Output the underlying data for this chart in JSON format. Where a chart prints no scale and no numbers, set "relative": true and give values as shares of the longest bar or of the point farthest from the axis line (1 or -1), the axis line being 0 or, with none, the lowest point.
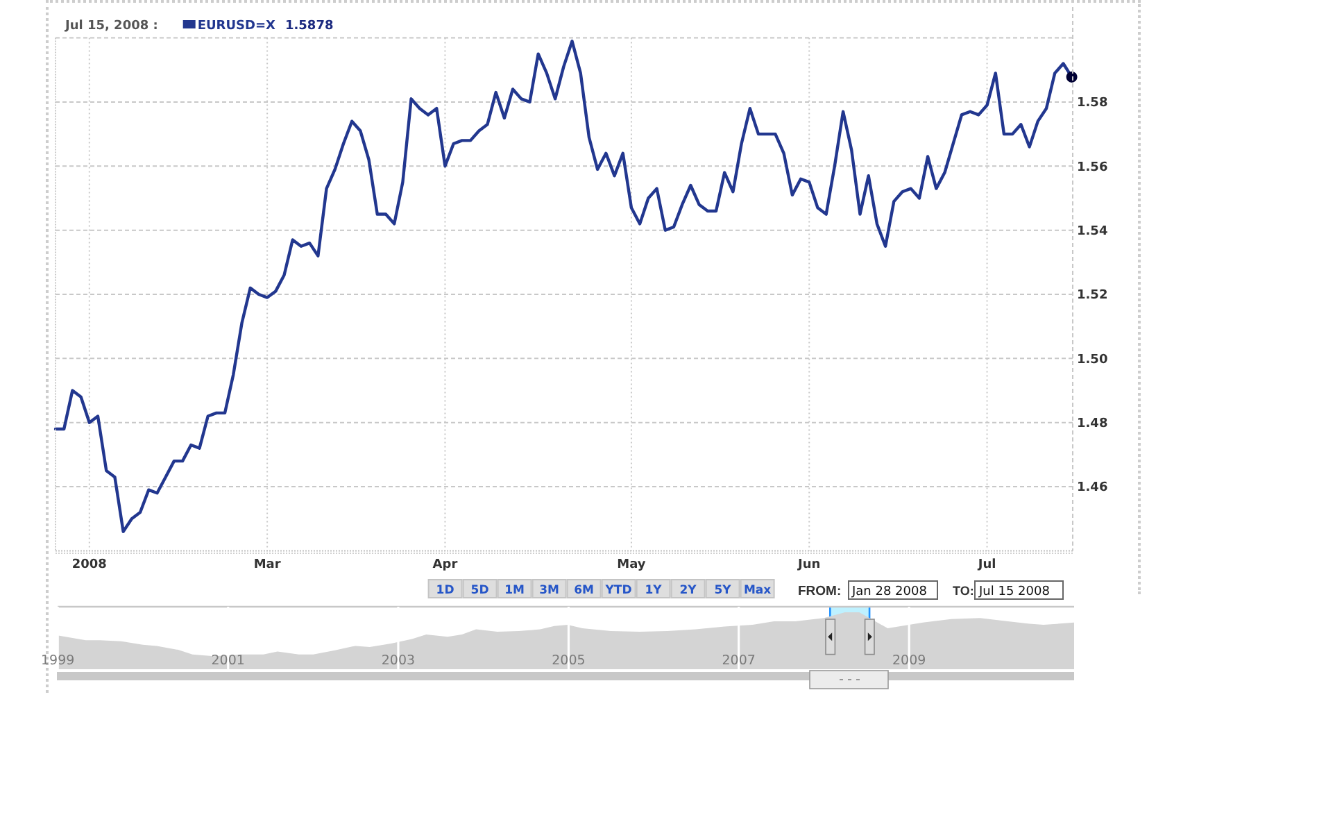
{
  "chart_data": [
    {
      "type": "line",
      "categories": [
        null,
        null,
        null,
        null,
        "2008",
        null,
        null,
        null,
        null,
        null,
        null,
        null,
        null,
        null,
        null,
        null,
        null,
        null,
        null,
        null,
        null,
        null,
        null,
        null,
        null,
        "Mar",
        null,
        null,
        null,
        null,
        null,
        null,
        null,
        null,
        null,
        null,
        null,
        null,
        null,
        null,
        null,
        null,
        null,
        null,
        null,
        null,
        "Apr",
        null,
        null,
        null,
        null,
        null,
        null,
        null,
        null,
        null,
        null,
        null,
        null,
        null,
        null,
        null,
        null,
        null,
        null,
        null,
        null,
        null,
        "May",
        null,
        null,
        null,
        null,
        null,
        null,
        null,
        null,
        null,
        null,
        null,
        null,
        null,
        null,
        null,
        null,
        null,
        null,
        null,
        null,
        "Jun",
        null,
        null,
        null,
        null,
        null,
        null,
        null,
        null,
        null,
        null,
        null,
        null,
        null,
        null,
        null,
        null,
        null,
        null,
        null,
        null,
        "Jul",
        null,
        null,
        null,
        null,
        null,
        null,
        null,
        null,
        null,
        null
      ],
      "series": [
        {
          "name": "EURUSD=X",
          "color": "#22378f",
          "values": [
            1.478,
            1.478,
            1.49,
            1.488,
            1.48,
            1.482,
            1.465,
            1.463,
            1.446,
            1.45,
            1.452,
            1.459,
            1.458,
            1.463,
            1.468,
            1.468,
            1.473,
            1.472,
            1.482,
            1.483,
            1.483,
            1.495,
            1.511,
            1.522,
            1.52,
            1.519,
            1.521,
            1.526,
            1.537,
            1.535,
            1.536,
            1.532,
            1.553,
            1.559,
            1.567,
            1.574,
            1.571,
            1.562,
            1.545,
            1.545,
            1.542,
            1.555,
            1.581,
            1.578,
            1.576,
            1.578,
            1.56,
            1.567,
            1.568,
            1.568,
            1.571,
            1.573,
            1.583,
            1.575,
            1.584,
            1.581,
            1.58,
            1.595,
            1.589,
            1.581,
            1.591,
            1.599,
            1.589,
            1.569,
            1.559,
            1.564,
            1.557,
            1.564,
            1.547,
            1.542,
            1.55,
            1.553,
            1.54,
            1.541,
            1.548,
            1.554,
            1.548,
            1.546,
            1.546,
            1.558,
            1.552,
            1.567,
            1.578,
            1.57,
            1.57,
            1.57,
            1.564,
            1.551,
            1.556,
            1.555,
            1.547,
            1.545,
            1.56,
            1.577,
            1.565,
            1.545,
            1.557,
            1.542,
            1.535,
            1.549,
            1.552,
            1.553,
            1.55,
            1.563,
            1.553,
            1.558,
            1.567,
            1.576,
            1.577,
            1.576,
            1.579,
            1.589,
            1.57,
            1.57,
            1.573,
            1.566,
            1.574,
            1.578,
            1.589,
            1.592,
            1.5878
          ]
        },
        {
          "type": "scatter",
          "color": "#000033",
          "marker": "circle",
          "values": [
            null,
            null,
            null,
            null,
            null,
            null,
            null,
            null,
            null,
            null,
            null,
            null,
            null,
            null,
            null,
            null,
            null,
            null,
            null,
            null,
            null,
            null,
            null,
            null,
            null,
            null,
            null,
            null,
            null,
            null,
            null,
            null,
            null,
            null,
            null,
            null,
            null,
            null,
            null,
            null,
            null,
            null,
            null,
            null,
            null,
            null,
            null,
            null,
            null,
            null,
            null,
            null,
            null,
            null,
            null,
            null,
            null,
            null,
            null,
            null,
            null,
            null,
            null,
            null,
            null,
            null,
            null,
            null,
            null,
            null,
            null,
            null,
            null,
            null,
            null,
            null,
            null,
            null,
            null,
            null,
            null,
            null,
            null,
            null,
            null,
            null,
            null,
            null,
            null,
            null,
            null,
            null,
            null,
            null,
            null,
            null,
            null,
            null,
            null,
            null,
            null,
            null,
            null,
            null,
            null,
            null,
            null,
            null,
            null,
            null,
            null,
            null,
            null,
            null,
            null,
            null,
            null,
            null,
            null,
            null,
            1.5878
          ]
        }
      ],
      "ylim": [
        1.44,
        1.6
      ],
      "yticks": [
        1.46,
        1.48,
        {
          "value": 1.5,
          "label": "1.50"
        },
        1.52,
        1.54,
        1.56,
        1.58
      ],
      "grid": true,
      "legend": "top left",
      "annotations": [
        "Jul 15, 2008 :",
        "1.5878",
        "1D",
        "5D",
        "1M",
        "3M",
        "6M",
        "YTD",
        "1Y",
        "2Y",
        "5Y",
        "Max",
        "FROM:",
        "Jan 28 2008",
        "TO:",
        "Jul 15 2008"
      ]
    },
    {
      "type": "area",
      "relative": true,
      "color": "#d4d4d4",
      "x": [
        "1999-01-04",
        "1999-05",
        "1999-07",
        "1999-10",
        "2000-01",
        "2000-03",
        "2000-06",
        "2000-08",
        "2000-11",
        "2001-03",
        "2001-06",
        "2001-08",
        "2001-11",
        "2002-01",
        "2002-04",
        "2002-07",
        "2002-09",
        "2002-12",
        "2003-03",
        "2003-05",
        "2003-08",
        "2003-10",
        "2003-12",
        "2004-03",
        "2004-06",
        "2004-09",
        "2004-11",
        "2004-12-28",
        "2005-03",
        "2005-07",
        "2005-11",
        "2006-03",
        "2006-07",
        "2006-11",
        "2007-03",
        "2007-06",
        "2007-09",
        "2008-01",
        "2008-04",
        "2008-06",
        "2008-08",
        "2008-10",
        "2009-01",
        "2009-03",
        "2009-07",
        "2009-11",
        "2010-03",
        "2010-06",
        "2010-08",
        "2010-12-10"
      ],
      "values": [
        0.59,
        0.51,
        0.51,
        0.49,
        0.43,
        0.41,
        0.34,
        0.26,
        0.23,
        0.26,
        0.26,
        0.31,
        0.26,
        0.26,
        0.33,
        0.41,
        0.39,
        0.45,
        0.53,
        0.61,
        0.57,
        0.61,
        0.7,
        0.66,
        0.67,
        0.7,
        0.76,
        0.78,
        0.72,
        0.67,
        0.66,
        0.67,
        0.7,
        0.75,
        0.78,
        0.84,
        0.84,
        0.9,
        1,
        1,
        0.86,
        0.72,
        0.78,
        0.82,
        0.88,
        0.9,
        0.84,
        0.8,
        0.78,
        0.82
      ],
      "xlim": [
        "1999-01-01",
        "2010-12-10"
      ],
      "xticks": [
        {
          "value": "1999-01-01",
          "label": "1999"
        },
        {
          "value": "2001-01-01",
          "label": "2001"
        },
        {
          "value": "2003-01-01",
          "label": "2003"
        },
        {
          "value": "2005-01-01",
          "label": "2005"
        },
        {
          "value": "2007-01-01",
          "label": "2007"
        },
        {
          "value": "2009-01-01",
          "label": "2009"
        }
      ],
      "bands": [
        {
          "axis": "x",
          "from": "2008-01-28",
          "to": "2008-07-15",
          "color": "#a8ecff"
        }
      ],
      "grid": "x"
    }
  ]
}
